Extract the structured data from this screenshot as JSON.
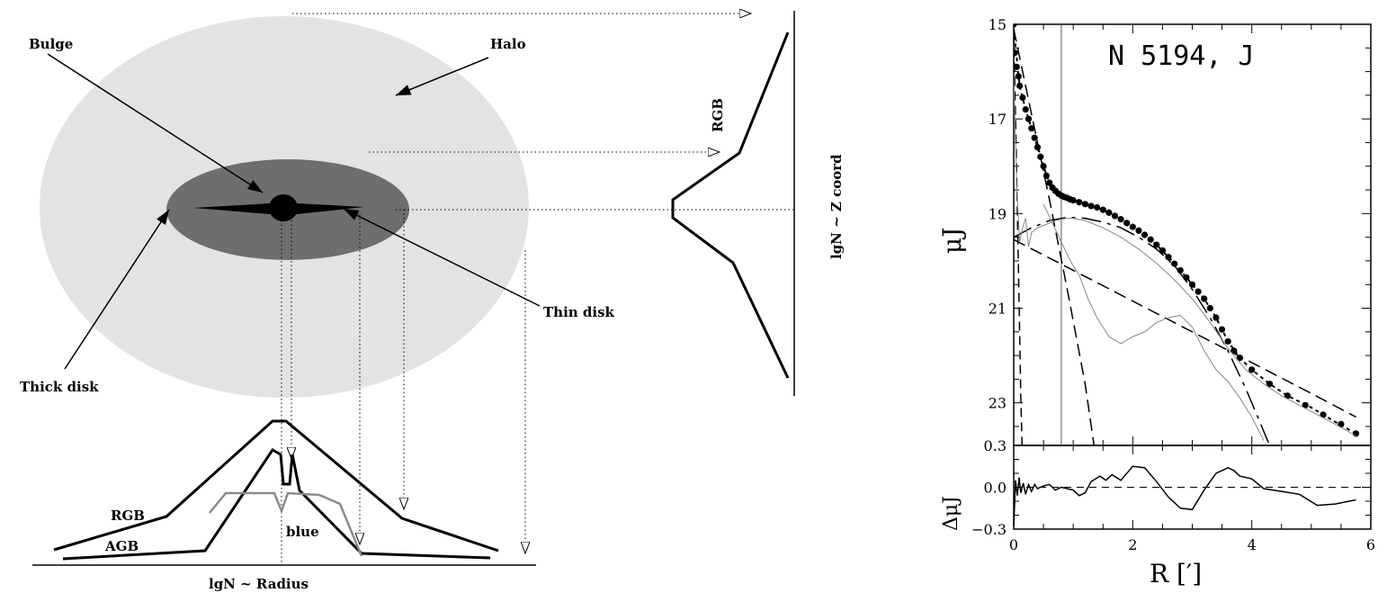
{
  "schematic": {
    "labels": {
      "bulge": "Bulge",
      "halo": "Halo",
      "thin_disk": "Thin disk",
      "thick_disk": "Thick disk",
      "rgb_top": "RGB",
      "rgb_bottom": "RGB",
      "agb": "AGB",
      "blue": "blue",
      "x_axis": "lgN ~ Radius",
      "z_axis": "lgN ~ Z coord"
    },
    "colors": {
      "halo": "#e3e3e3",
      "thick_disk": "#6e6e6e",
      "thin_disk": "#000000",
      "blue_profile": "#8c8c8c"
    }
  },
  "chart_data": {
    "type": "line",
    "title": "N 5194, J",
    "xlabel": "R [′]",
    "ylabel": "μJ",
    "x_ticks": [
      "0",
      "2",
      "4",
      "6"
    ],
    "main_panel": {
      "ylim": [
        23.9,
        15
      ],
      "xlim": [
        0,
        6
      ],
      "y_ticks": [
        "15",
        "17",
        "19",
        "21",
        "23"
      ],
      "vertical_line_x": 0.8,
      "series": [
        {
          "style": "dots",
          "x": [
            0,
            0.02,
            0.05,
            0.08,
            0.1,
            0.15,
            0.2,
            0.25,
            0.3,
            0.35,
            0.4,
            0.45,
            0.5,
            0.55,
            0.6,
            0.65,
            0.7,
            0.75,
            0.8,
            0.85,
            0.9,
            0.95,
            1.0,
            1.1,
            1.2,
            1.3,
            1.4,
            1.5,
            1.6,
            1.7,
            1.8,
            1.9,
            2.0,
            2.1,
            2.2,
            2.3,
            2.4,
            2.5,
            2.6,
            2.7,
            2.8,
            2.9,
            3.0,
            3.1,
            3.2,
            3.3,
            3.4,
            3.5,
            3.6,
            3.7,
            3.8,
            4.0,
            4.3,
            4.6,
            4.9,
            5.2,
            5.5,
            5.75
          ],
          "y": [
            15.0,
            15.6,
            15.9,
            16.1,
            16.3,
            16.55,
            16.8,
            17.0,
            17.2,
            17.4,
            17.6,
            17.8,
            18.0,
            18.2,
            18.35,
            18.45,
            18.52,
            18.58,
            18.62,
            18.65,
            18.67,
            18.7,
            18.72,
            18.76,
            18.8,
            18.84,
            18.87,
            18.92,
            18.98,
            19.05,
            19.12,
            19.2,
            19.28,
            19.36,
            19.45,
            19.55,
            19.66,
            19.78,
            19.92,
            20.06,
            20.2,
            20.35,
            20.5,
            20.65,
            20.8,
            21.0,
            21.2,
            21.45,
            21.7,
            21.9,
            22.05,
            22.3,
            22.6,
            22.85,
            23.05,
            23.25,
            23.45,
            23.65
          ]
        },
        {
          "style": "dotted-fit",
          "x": [
            0,
            0.1,
            0.2,
            0.3,
            0.4,
            0.5,
            0.6,
            0.7,
            0.8,
            1.0,
            1.2,
            1.4,
            1.6,
            1.8,
            2.0,
            2.2,
            2.4,
            2.6,
            2.8,
            3.0,
            3.2,
            3.4,
            3.6,
            3.8,
            4.0,
            4.3,
            4.6,
            5.0,
            5.4,
            5.75
          ],
          "y": [
            15.1,
            16.3,
            16.8,
            17.2,
            17.6,
            18.0,
            18.35,
            18.52,
            18.62,
            18.72,
            18.8,
            18.87,
            18.98,
            19.12,
            19.28,
            19.45,
            19.66,
            19.92,
            20.2,
            20.5,
            20.8,
            21.2,
            21.7,
            22.05,
            22.3,
            22.6,
            22.85,
            23.1,
            23.4,
            23.65
          ]
        },
        {
          "style": "dashed-bulge",
          "x": [
            0,
            0.3,
            0.6,
            0.9,
            1.2,
            1.35
          ],
          "y": [
            15.1,
            16.9,
            18.7,
            20.6,
            22.6,
            23.9
          ]
        },
        {
          "style": "dashed-nucleus",
          "x": [
            0,
            0.04,
            0.08,
            0.12,
            0.14
          ],
          "y": [
            15.2,
            17.5,
            20.2,
            22.9,
            23.9
          ]
        },
        {
          "style": "dashed-disk",
          "x": [
            0,
            1,
            2,
            3,
            4,
            5,
            5.75
          ],
          "y": [
            19.55,
            20.2,
            20.85,
            21.5,
            22.15,
            22.8,
            23.3
          ]
        },
        {
          "style": "dashed-ring",
          "x": [
            0,
            0.3,
            0.6,
            0.9,
            1.2,
            1.5,
            1.8,
            2.1,
            2.4,
            2.7,
            3.0,
            3.3,
            3.6,
            3.9,
            4.1,
            4.3
          ],
          "y": [
            19.5,
            19.3,
            19.15,
            19.08,
            19.1,
            19.18,
            19.3,
            19.5,
            19.75,
            20.1,
            20.6,
            21.2,
            21.9,
            22.7,
            23.3,
            23.9
          ]
        },
        {
          "style": "thin-gray",
          "x": [
            0,
            0.05,
            0.1,
            0.15,
            0.2,
            0.25,
            0.3,
            0.4,
            0.5,
            0.6,
            0.7,
            0.8,
            0.9,
            1.0,
            1.2,
            1.5,
            1.8,
            2.1,
            2.4,
            2.7,
            3.0,
            3.3,
            3.6,
            3.9,
            4.2,
            4.5,
            4.8,
            5.1,
            5.4,
            5.75
          ],
          "y": [
            16.1,
            18.4,
            19.6,
            19.3,
            19.1,
            19.7,
            19.4,
            19.3,
            19.25,
            19.2,
            19.15,
            19.12,
            19.1,
            19.1,
            19.15,
            19.3,
            19.5,
            19.75,
            20.05,
            20.4,
            20.8,
            21.3,
            21.85,
            22.3,
            22.6,
            22.85,
            23.05,
            23.25,
            23.45,
            23.7
          ]
        },
        {
          "style": "thin-gray",
          "x": [
            0.5,
            0.65,
            0.8,
            0.95,
            1.1,
            1.25,
            1.4,
            1.6,
            1.8,
            2.0,
            2.2,
            2.4,
            2.6,
            2.8,
            3.0,
            3.2,
            3.4,
            3.6,
            3.8,
            4.0,
            4.2
          ],
          "y": [
            18.8,
            19.2,
            19.6,
            20.0,
            20.3,
            20.8,
            21.2,
            21.6,
            21.75,
            21.6,
            21.5,
            21.3,
            21.2,
            21.15,
            21.4,
            21.9,
            22.3,
            22.55,
            22.9,
            23.3,
            23.8
          ]
        }
      ]
    },
    "residual_panel": {
      "ylabel": "ΔμJ",
      "ylim": [
        -0.3,
        0.3
      ],
      "y_ticks": [
        "0.3",
        "0.0",
        "−0.3"
      ],
      "x": [
        0.0,
        0.03,
        0.06,
        0.09,
        0.12,
        0.16,
        0.2,
        0.25,
        0.3,
        0.35,
        0.4,
        0.5,
        0.6,
        0.7,
        0.8,
        0.9,
        1.0,
        1.1,
        1.2,
        1.3,
        1.45,
        1.55,
        1.65,
        1.8,
        2.0,
        2.2,
        2.4,
        2.6,
        2.8,
        3.0,
        3.2,
        3.4,
        3.6,
        3.7,
        3.8,
        4.0,
        4.2,
        4.5,
        4.8,
        5.1,
        5.4,
        5.75
      ],
      "y": [
        -0.28,
        0.05,
        -0.06,
        0.07,
        -0.04,
        0.03,
        -0.05,
        0.02,
        -0.03,
        0.02,
        -0.01,
        0.01,
        0.02,
        -0.02,
        0.0,
        -0.01,
        -0.02,
        -0.06,
        -0.04,
        0.04,
        0.08,
        0.05,
        0.09,
        0.05,
        0.15,
        0.14,
        0.04,
        -0.07,
        -0.15,
        -0.16,
        -0.02,
        0.1,
        0.14,
        0.12,
        0.08,
        0.06,
        -0.01,
        -0.03,
        -0.05,
        -0.13,
        -0.12,
        -0.09
      ]
    }
  }
}
